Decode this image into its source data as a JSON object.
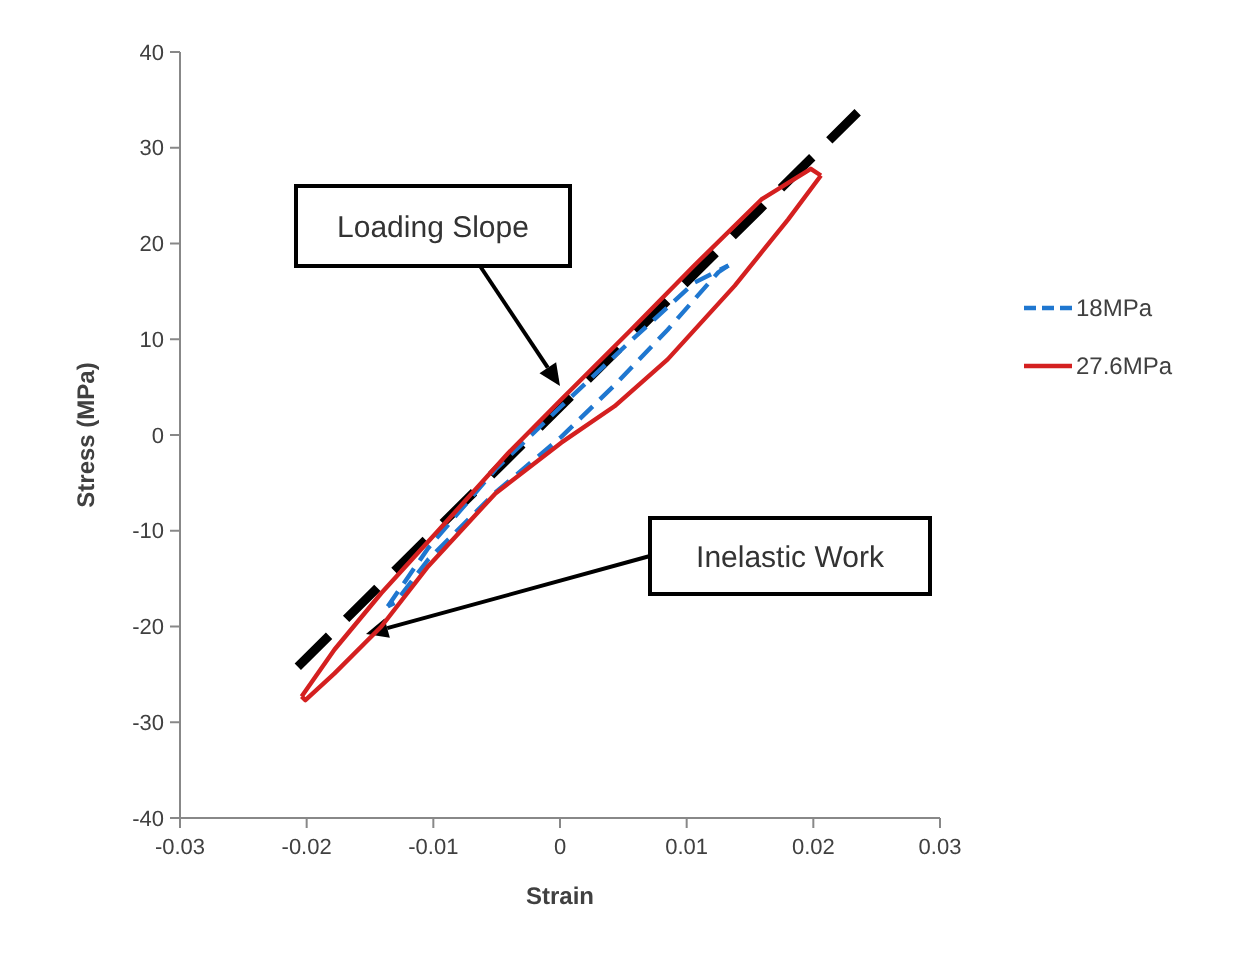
{
  "chart_data": {
    "type": "line",
    "xlabel": "Strain",
    "ylabel": "Stress (MPa)",
    "xlim": [
      -0.03,
      0.03
    ],
    "xticks": [
      -0.03,
      -0.02,
      -0.01,
      0,
      0.01,
      0.02,
      0.03
    ],
    "ylim": [
      -40,
      40
    ],
    "yticks": [
      -40,
      -30,
      -20,
      -10,
      0,
      10,
      20,
      30,
      40
    ],
    "grid": false,
    "legend": "right",
    "marker": "none",
    "series": [
      {
        "color": "#000000",
        "line_style": "dashed",
        "x": [
          -0.0207,
          0.0235
        ],
        "values": [
          -24.2,
          33.7
        ]
      },
      {
        "name": "18MPa",
        "color": "#1f77d0",
        "line_style": "dashed",
        "x": [
          -0.0136,
          -0.0104,
          -0.0051,
          0.0001,
          0.0054,
          0.0106,
          0.0133
        ],
        "values": [
          -17.9,
          -11.8,
          -3.6,
          3.0,
          9.6,
          15.9,
          17.7
        ]
      },
      {
        "color": "#1f77d0",
        "line_style": "dashed",
        "x": [
          0.0133,
          0.0125,
          0.0085,
          0.0043,
          0.0001,
          -0.0051,
          -0.0104,
          -0.013,
          -0.0136
        ],
        "values": [
          17.7,
          17.0,
          11.0,
          5.2,
          -0.2,
          -6.0,
          -13.0,
          -17.5,
          -17.9
        ]
      },
      {
        "name": "27.6MPa",
        "color": "#d42020",
        "line_style": "solid",
        "x": [
          -0.0204,
          -0.0178,
          -0.0141,
          -0.0088,
          -0.0041,
          0.0001,
          0.0054,
          0.0106,
          0.0159,
          0.0198,
          0.0206
        ],
        "values": [
          -27.3,
          -22.4,
          -16.5,
          -8.8,
          -1.9,
          3.7,
          10.7,
          17.7,
          24.6,
          27.8,
          27.1
        ]
      },
      {
        "color": "#d42020",
        "line_style": "solid",
        "x": [
          0.0206,
          0.018,
          0.0138,
          0.0085,
          0.0043,
          0.0001,
          -0.0051,
          -0.0104,
          -0.0141,
          -0.0178,
          -0.0201,
          -0.0204
        ],
        "values": [
          27.1,
          22.5,
          15.6,
          7.9,
          3.0,
          -0.8,
          -6.1,
          -13.7,
          -20.0,
          -24.9,
          -27.7,
          -27.3
        ]
      }
    ],
    "annotations": [
      "Loading Slope",
      "Inelastic Work"
    ]
  }
}
